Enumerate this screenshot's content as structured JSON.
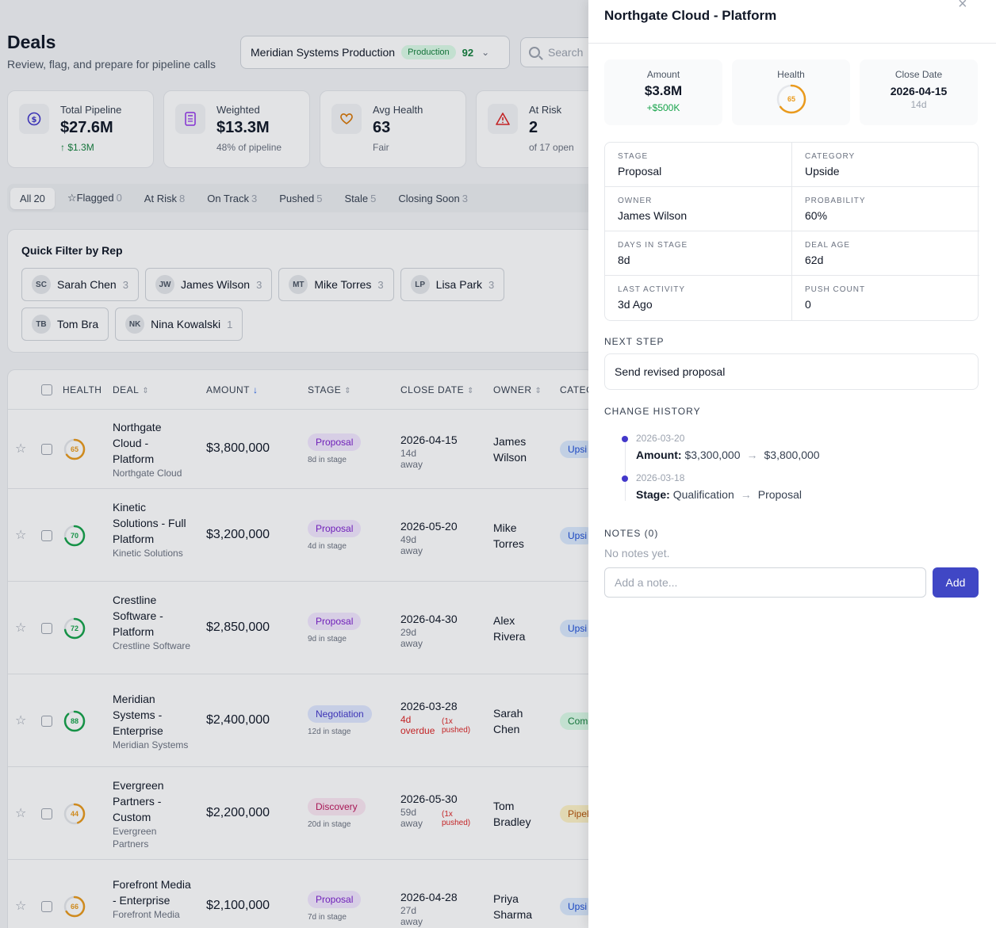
{
  "header": {
    "title": "Deals",
    "subtitle": "Review, flag, and prepare for pipeline calls"
  },
  "env": {
    "name": "Meridian Systems Production",
    "badge": "Production",
    "score": "92"
  },
  "search": {
    "placeholder": "Search"
  },
  "kpis": [
    {
      "label": "Total Pipeline",
      "value": "$27.6M",
      "sub": "↑ $1.3M",
      "icon": "dollar-icon"
    },
    {
      "label": "Weighted",
      "value": "$13.3M",
      "sub": "48% of pipeline",
      "icon": "calculator-icon"
    },
    {
      "label": "Avg Health",
      "value": "63",
      "sub": "Fair",
      "icon": "heart-icon"
    },
    {
      "label": "At Risk",
      "value": "2",
      "sub": "of 17 open",
      "icon": "warning-icon"
    }
  ],
  "filters": [
    {
      "label": "All",
      "count": "20"
    },
    {
      "label": "Flagged",
      "count": "0"
    },
    {
      "label": "At Risk",
      "count": "8"
    },
    {
      "label": "On Track",
      "count": "3"
    },
    {
      "label": "Pushed",
      "count": "5"
    },
    {
      "label": "Stale",
      "count": "5"
    },
    {
      "label": "Closing Soon",
      "count": "3"
    }
  ],
  "reps": {
    "title": "Quick Filter by Rep",
    "items": [
      {
        "initials": "SC",
        "name": "Sarah Chen",
        "count": "3"
      },
      {
        "initials": "JW",
        "name": "James Wilson",
        "count": "3"
      },
      {
        "initials": "MT",
        "name": "Mike Torres",
        "count": "3"
      },
      {
        "initials": "LP",
        "name": "Lisa Park",
        "count": "3"
      },
      {
        "initials": "TB",
        "name": "Tom Bra",
        "count": ""
      },
      {
        "initials": "NK",
        "name": "Nina Kowalski",
        "count": "1"
      }
    ]
  },
  "table": {
    "headers": {
      "health": "HEALTH",
      "deal": "DEAL",
      "amount": "AMOUNT",
      "stage": "STAGE",
      "close": "CLOSE DATE",
      "owner": "OWNER",
      "category": "CATEG"
    },
    "rows": [
      {
        "health": 65,
        "name": "Northgate Cloud - Platform",
        "company": "Northgate Cloud",
        "amount": "$3,800,000",
        "stage": "Proposal",
        "stage_class": "proposal",
        "days": "8d in stage",
        "date": "2026-04-15",
        "away": "14d away",
        "pushed": "",
        "owner": "James Wilson",
        "category": "Upsi",
        "cat_class": "upside"
      },
      {
        "health": 70,
        "name": "Kinetic Solutions - Full Platform",
        "company": "Kinetic Solutions",
        "amount": "$3,200,000",
        "stage": "Proposal",
        "stage_class": "proposal",
        "days": "4d in stage",
        "date": "2026-05-20",
        "away": "49d away",
        "pushed": "",
        "owner": "Mike Torres",
        "category": "Upsi",
        "cat_class": "upside"
      },
      {
        "health": 72,
        "name": "Crestline Software - Platform",
        "company": "Crestline Software",
        "amount": "$2,850,000",
        "stage": "Proposal",
        "stage_class": "proposal",
        "days": "9d in stage",
        "date": "2026-04-30",
        "away": "29d away",
        "pushed": "",
        "owner": "Alex Rivera",
        "category": "Upsi",
        "cat_class": "upside"
      },
      {
        "health": 88,
        "name": "Meridian Systems - Enterprise",
        "company": "Meridian Systems",
        "amount": "$2,400,000",
        "stage": "Negotiation",
        "stage_class": "negotiation",
        "days": "12d in stage",
        "date": "2026-03-28",
        "away": "4d overdue",
        "pushed": "(1x pushed)",
        "owner": "Sarah Chen",
        "category": "Com",
        "cat_class": "commit"
      },
      {
        "health": 44,
        "name": "Evergreen Partners - Custom",
        "company": "Evergreen Partners",
        "amount": "$2,200,000",
        "stage": "Discovery",
        "stage_class": "discovery",
        "days": "20d in stage",
        "date": "2026-05-30",
        "away": "59d away",
        "pushed": "(1x pushed)",
        "owner": "Tom Bradley",
        "category": "Pipel",
        "cat_class": "pipeline"
      },
      {
        "health": 66,
        "name": "Forefront Media - Enterprise",
        "company": "Forefront Media",
        "amount": "$2,100,000",
        "stage": "Proposal",
        "stage_class": "proposal",
        "days": "7d in stage",
        "date": "2026-04-28",
        "away": "27d away",
        "pushed": "",
        "owner": "Priya Sharma",
        "category": "Upsi",
        "cat_class": "upside"
      }
    ]
  },
  "drawer": {
    "title": "Northgate Cloud - Platform",
    "amount": {
      "label": "Amount",
      "value": "$3.8M",
      "sub": "+$500K"
    },
    "health": {
      "label": "Health",
      "value": 65
    },
    "close": {
      "label": "Close Date",
      "value": "2026-04-15",
      "sub": "14d"
    },
    "fields": [
      {
        "k": "STAGE",
        "v": "Proposal"
      },
      {
        "k": "CATEGORY",
        "v": "Upside"
      },
      {
        "k": "OWNER",
        "v": "James Wilson"
      },
      {
        "k": "PROBABILITY",
        "v": "60%"
      },
      {
        "k": "DAYS IN STAGE",
        "v": "8d"
      },
      {
        "k": "DEAL AGE",
        "v": "62d"
      },
      {
        "k": "LAST ACTIVITY",
        "v": "3d Ago"
      },
      {
        "k": "PUSH COUNT",
        "v": "0"
      }
    ],
    "next_step_label": "NEXT STEP",
    "next_step": "Send revised proposal",
    "history_label": "CHANGE HISTORY",
    "history": [
      {
        "date": "2026-03-20",
        "field": "Amount:",
        "from": "$3,300,000",
        "to": "$3,800,000"
      },
      {
        "date": "2026-03-18",
        "field": "Stage:",
        "from": "Qualification",
        "to": "Proposal"
      }
    ],
    "notes_label": "NOTES (0)",
    "no_notes": "No notes yet.",
    "note_placeholder": "Add a note...",
    "add_label": "Add"
  }
}
